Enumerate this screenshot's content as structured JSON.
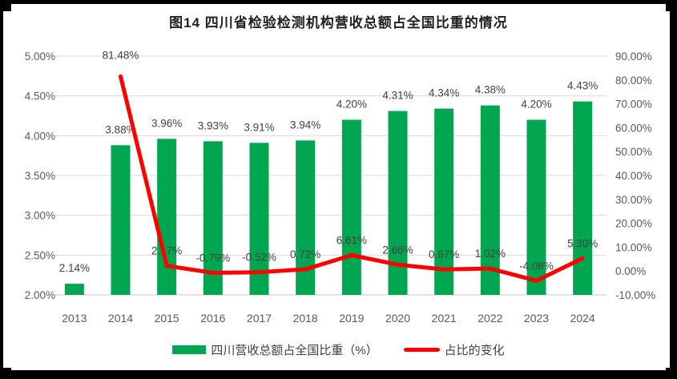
{
  "title": "图14  四川省检验检测机构营收总额占全国比重的情况",
  "frame": {
    "border_color": "#000000"
  },
  "chart_data": {
    "type": "bar",
    "subtype": "combo-bar-line",
    "title": "图14  四川省检验检测机构营收总额占全国比重的情况",
    "categories": [
      "2013",
      "2014",
      "2015",
      "2016",
      "2017",
      "2018",
      "2019",
      "2020",
      "2021",
      "2022",
      "2023",
      "2024"
    ],
    "series": [
      {
        "name": "四川营收总额占全国比重（%）",
        "type": "bar",
        "axis": "left",
        "color": "#00A650",
        "values": [
          2.14,
          3.88,
          3.96,
          3.93,
          3.91,
          3.94,
          4.2,
          4.31,
          4.34,
          4.38,
          4.2,
          4.43
        ],
        "labels": [
          "2.14%",
          "3.88%",
          "3.96%",
          "3.93%",
          "3.91%",
          "3.94%",
          "4.20%",
          "4.31%",
          "4.34%",
          "4.38%",
          "4.20%",
          "4.43%"
        ]
      },
      {
        "name": "占比的变化",
        "type": "line",
        "axis": "right",
        "color": "#FE0000",
        "values": [
          null,
          81.48,
          2.17,
          -0.79,
          -0.52,
          0.72,
          6.61,
          2.66,
          0.67,
          1.02,
          -4.08,
          5.3
        ],
        "labels": [
          null,
          "81.48%",
          "2.17%",
          "-0.79%",
          "-0.52%",
          "0.72%",
          "6.61%",
          "2.66%",
          "0.67%",
          "1.02%",
          "-4.08%",
          "5.30%"
        ]
      }
    ],
    "left_axis": {
      "min": 2.0,
      "max": 5.0,
      "step": 0.5,
      "ticks": [
        "5.00%",
        "4.50%",
        "4.00%",
        "3.50%",
        "3.00%",
        "2.50%",
        "2.00%"
      ]
    },
    "right_axis": {
      "min": -10.0,
      "max": 90.0,
      "step": 10.0,
      "ticks": [
        "90.00%",
        "80.00%",
        "70.00%",
        "60.00%",
        "50.00%",
        "40.00%",
        "30.00%",
        "20.00%",
        "10.00%",
        "0.00%",
        "-10.00%"
      ]
    },
    "grid": true,
    "gridline_color": "#D9D9D9",
    "axis_text_color": "#595959",
    "data_label_color": "#404040",
    "legend_position": "bottom"
  }
}
